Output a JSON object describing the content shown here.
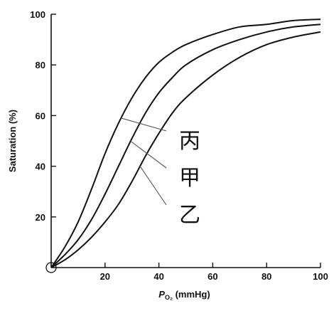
{
  "chart_data": {
    "type": "line",
    "title": "",
    "xlabel_main": "P",
    "xlabel_sub": "O₂",
    "xlabel_unit": " (mmHg)",
    "ylabel": "Saturation (%)",
    "xlim": [
      0,
      100
    ],
    "ylim": [
      0,
      100
    ],
    "x_ticks": [
      20,
      40,
      60,
      80,
      100
    ],
    "y_ticks": [
      20,
      40,
      60,
      80,
      100
    ],
    "grid": false,
    "series": [
      {
        "name": "丙",
        "x": [
          0,
          5,
          10,
          15,
          20,
          25,
          30,
          35,
          40,
          45,
          50,
          60,
          70,
          80,
          90,
          100
        ],
        "y": [
          0,
          8,
          18,
          31,
          45,
          57,
          67,
          75,
          81,
          85,
          88,
          92,
          95,
          96,
          97.5,
          98
        ]
      },
      {
        "name": "甲",
        "x": [
          0,
          5,
          10,
          15,
          20,
          25,
          30,
          35,
          40,
          45,
          50,
          60,
          70,
          80,
          90,
          100
        ],
        "y": [
          0,
          5,
          11,
          19,
          29,
          40,
          51,
          61,
          69,
          75,
          80,
          86,
          90,
          93,
          95,
          96
        ]
      },
      {
        "name": "乙",
        "x": [
          0,
          5,
          10,
          15,
          20,
          25,
          30,
          35,
          40,
          45,
          50,
          60,
          70,
          80,
          90,
          100
        ],
        "y": [
          0,
          3,
          7,
          12,
          18,
          25,
          34,
          44,
          53,
          61,
          67,
          76,
          83,
          88,
          91,
          93
        ]
      }
    ]
  }
}
